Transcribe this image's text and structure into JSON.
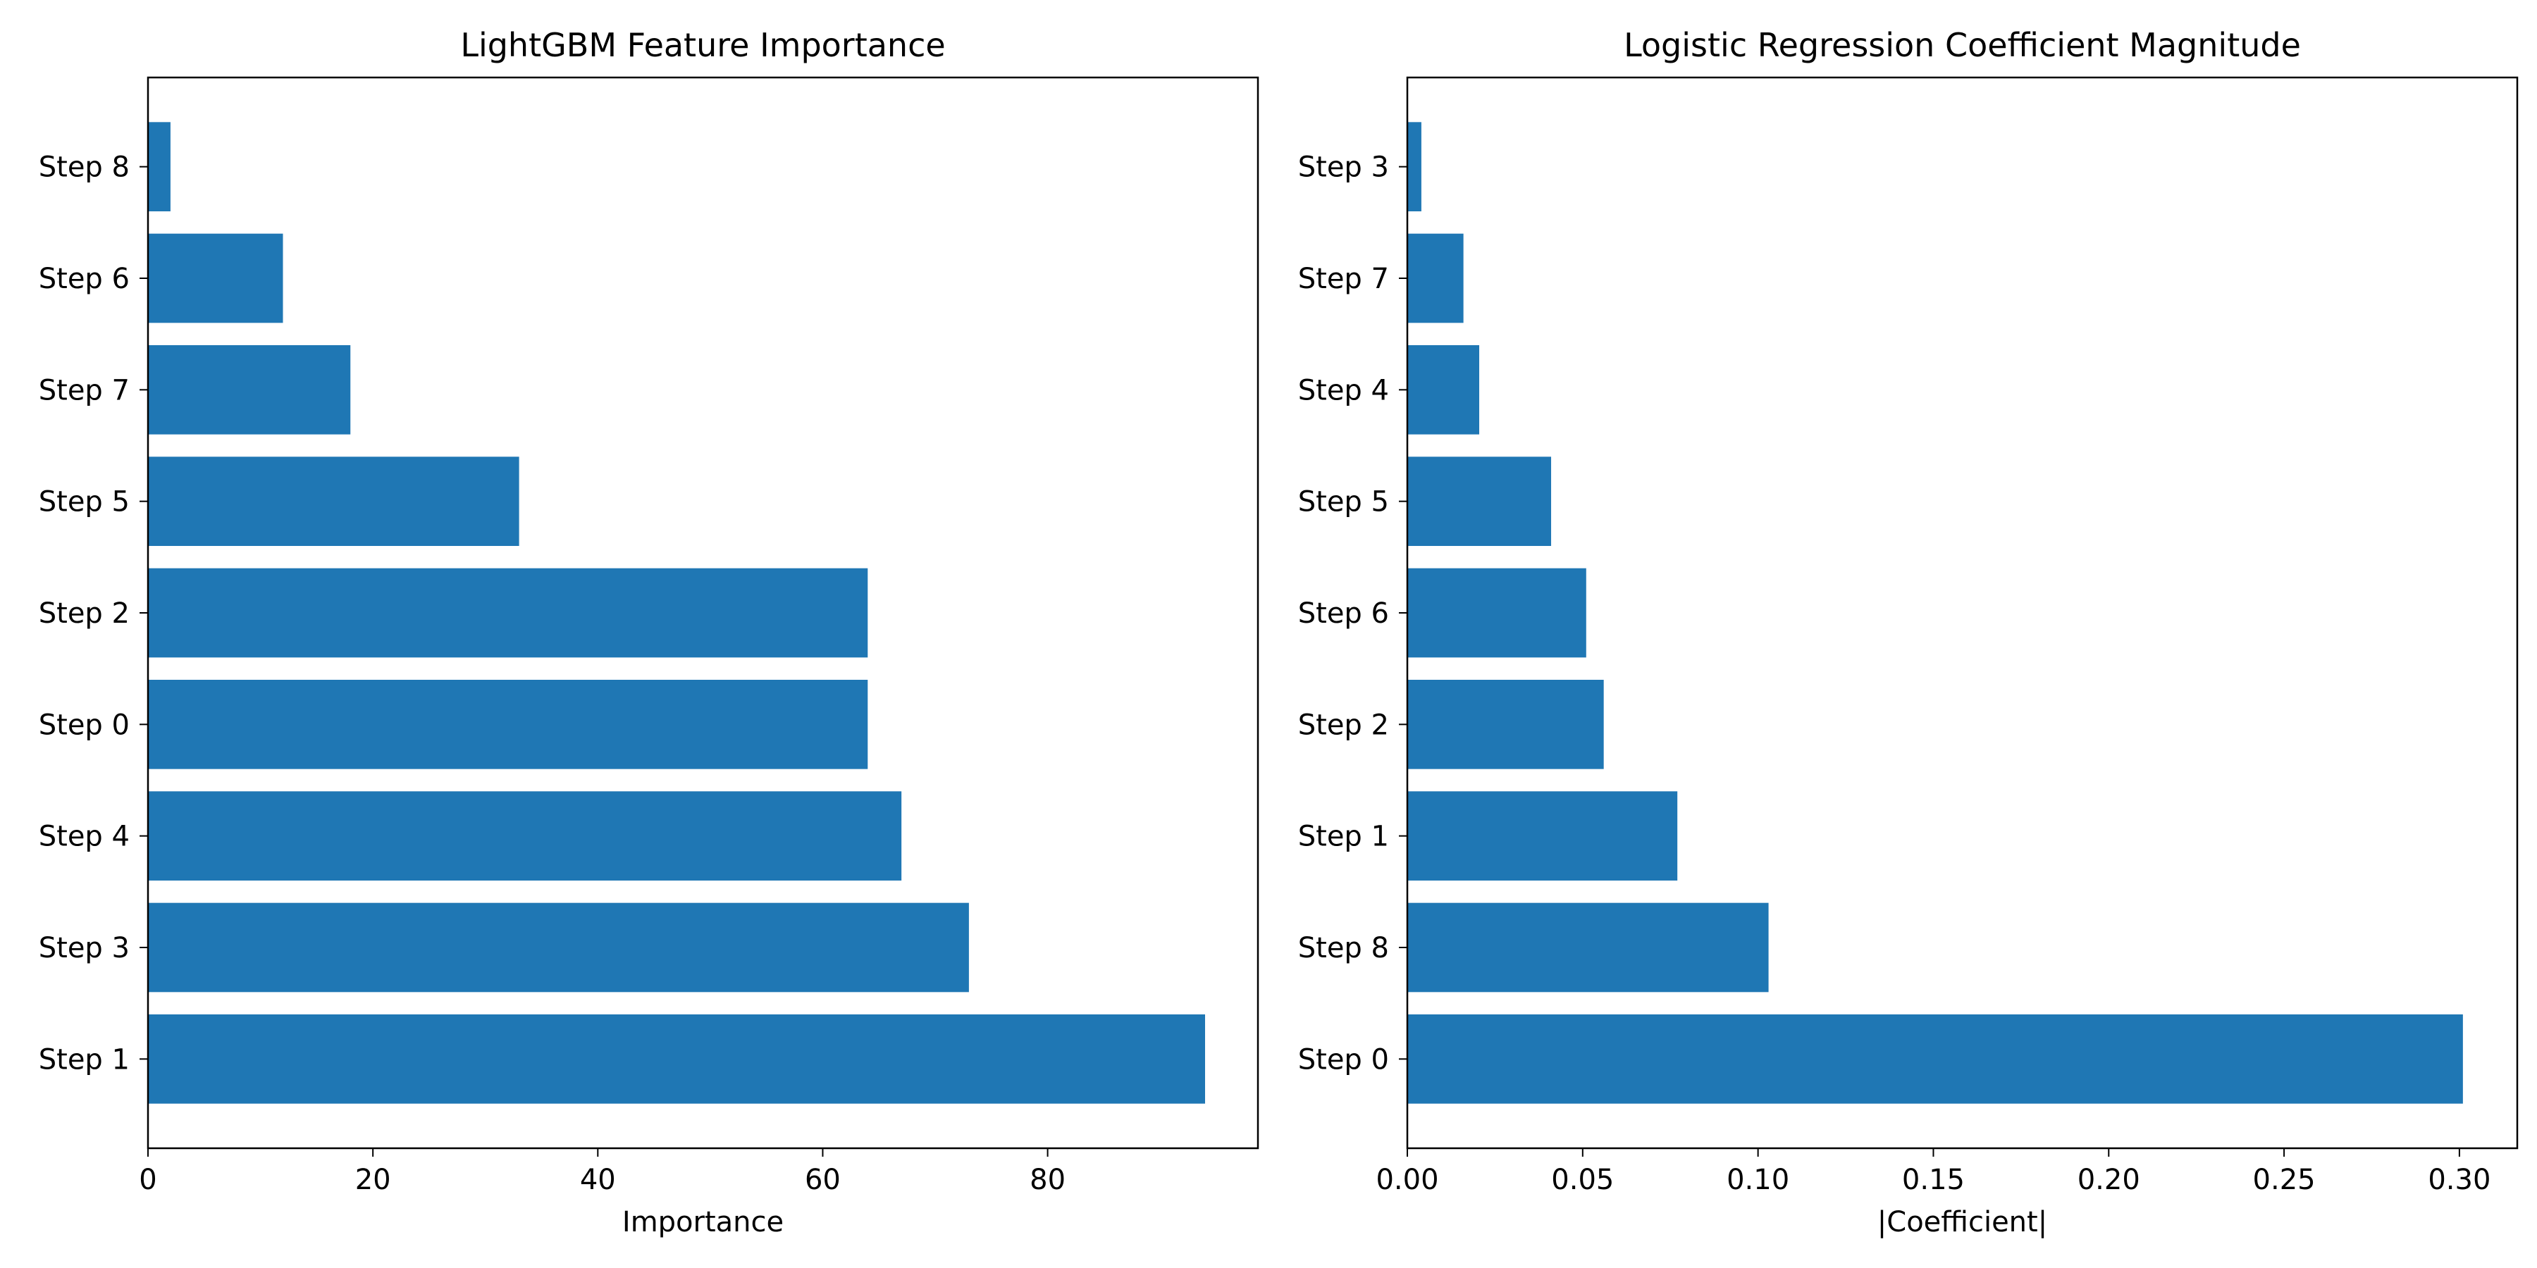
{
  "colors": {
    "bar": "#1f77b4",
    "axis": "#000000",
    "background": "#ffffff"
  },
  "chart_data": [
    {
      "type": "bar",
      "orientation": "horizontal",
      "title": "LightGBM Feature Importance",
      "xlabel": "Importance",
      "ylabel": "",
      "xlim": [
        0,
        98.7
      ],
      "xticks": [
        0,
        20,
        40,
        60,
        80
      ],
      "xtick_labels": [
        "0",
        "20",
        "40",
        "60",
        "80"
      ],
      "grid": false,
      "categories": [
        "Step 1",
        "Step 3",
        "Step 4",
        "Step 0",
        "Step 2",
        "Step 5",
        "Step 7",
        "Step 6",
        "Step 8"
      ],
      "values": [
        94,
        73,
        67,
        64,
        64,
        33,
        18,
        12,
        2
      ]
    },
    {
      "type": "bar",
      "orientation": "horizontal",
      "title": "Logistic Regression Coefficient Magnitude",
      "xlabel": "|Coefficient|",
      "ylabel": "",
      "xlim": [
        0,
        0.3165
      ],
      "xticks": [
        0,
        0.05,
        0.1,
        0.15,
        0.2,
        0.25,
        0.3
      ],
      "xtick_labels": [
        "0.00",
        "0.05",
        "0.10",
        "0.15",
        "0.20",
        "0.25",
        "0.30"
      ],
      "grid": false,
      "categories": [
        "Step 0",
        "Step 8",
        "Step 1",
        "Step 2",
        "Step 6",
        "Step 5",
        "Step 4",
        "Step 7",
        "Step 3"
      ],
      "values": [
        0.301,
        0.103,
        0.077,
        0.056,
        0.051,
        0.041,
        0.0205,
        0.016,
        0.004
      ]
    }
  ]
}
